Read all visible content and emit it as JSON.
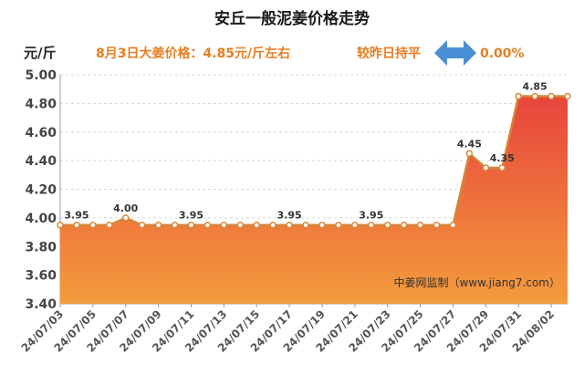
{
  "chart_data": {
    "type": "area",
    "title": "安丘一般泥姜价格走势",
    "ylabel": "元/斤",
    "ylim": [
      3.4,
      5.0
    ],
    "yticks": [
      "3.40",
      "3.60",
      "3.80",
      "4.00",
      "4.20",
      "4.40",
      "4.60",
      "4.80",
      "5.00"
    ],
    "grid": true,
    "x": [
      "24/07/03",
      "24/07/04",
      "24/07/05",
      "24/07/06",
      "24/07/07",
      "24/07/08",
      "24/07/09",
      "24/07/10",
      "24/07/11",
      "24/07/12",
      "24/07/13",
      "24/07/14",
      "24/07/15",
      "24/07/16",
      "24/07/17",
      "24/07/18",
      "24/07/19",
      "24/07/20",
      "24/07/21",
      "24/07/22",
      "24/07/23",
      "24/07/24",
      "24/07/25",
      "24/07/26",
      "24/07/27",
      "24/07/28",
      "24/07/29",
      "24/07/30",
      "24/07/31",
      "24/08/01",
      "24/08/02",
      "24/08/03"
    ],
    "xtick_labels": [
      "24/07/03",
      "24/07/05",
      "24/07/07",
      "24/07/09",
      "24/07/11",
      "24/07/13",
      "24/07/15",
      "24/07/17",
      "24/07/19",
      "24/07/21",
      "24/07/23",
      "24/07/25",
      "24/07/27",
      "24/07/29",
      "24/07/31",
      "24/08/02"
    ],
    "values": [
      3.95,
      3.95,
      3.95,
      3.95,
      4.0,
      3.95,
      3.95,
      3.95,
      3.95,
      3.95,
      3.95,
      3.95,
      3.95,
      3.95,
      3.95,
      3.95,
      3.95,
      3.95,
      3.95,
      3.95,
      3.95,
      3.95,
      3.95,
      3.95,
      3.95,
      4.45,
      4.35,
      4.35,
      4.85,
      4.85,
      4.85,
      4.85
    ],
    "data_labels": [
      {
        "index": 1,
        "text": "3.95"
      },
      {
        "index": 4,
        "text": "4.00"
      },
      {
        "index": 8,
        "text": "3.95"
      },
      {
        "index": 14,
        "text": "3.95"
      },
      {
        "index": 19,
        "text": "3.95"
      },
      {
        "index": 25,
        "text": "4.45"
      },
      {
        "index": 27,
        "text": "4.35"
      },
      {
        "index": 29,
        "text": "4.85"
      }
    ],
    "colors": {
      "line": "#d4863a",
      "fill_top": "#e8453c",
      "fill_bottom": "#f39c3c",
      "marker_fill": "#ffffff"
    }
  },
  "header": {
    "price_text": "8月3日大姜价格：4.85元/斤左右",
    "compare_text": "较昨日持平",
    "change_text": "0.00%",
    "arrow_icon": "double-arrow-icon",
    "arrow_color": "#4a8fd4"
  },
  "watermark": "中姜网监制（www.jiang7.com）"
}
